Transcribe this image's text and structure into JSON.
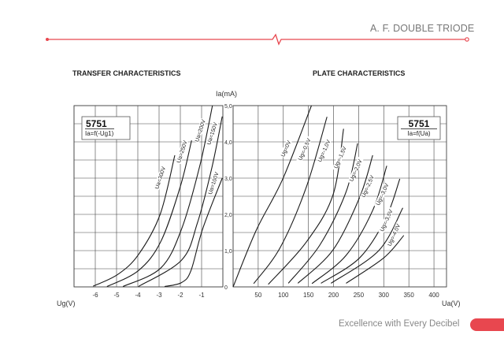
{
  "header": {
    "title": "A. F. DOUBLE TRIODE"
  },
  "footer": {
    "tagline": "Excellence with Every Decibel"
  },
  "colors": {
    "accent": "#e8474f",
    "curve": "#1a1a1a",
    "grid": "#444444",
    "title_text": "#777777"
  },
  "chart_data": [
    {
      "type": "line",
      "title": "TRANSFER CHARACTERISTICS",
      "xlabel": "Ug(V)",
      "ylabel": "Ia(mA)",
      "box": {
        "tube": "5751",
        "formula": "Ia=f(-Ug1)"
      },
      "xlim": [
        -7,
        0
      ],
      "ylim": [
        0,
        5
      ],
      "x_ticks": [
        -6,
        -5,
        -4,
        -3,
        -2,
        -1
      ],
      "x_tick_labels": [
        "-6",
        "-5",
        "-4",
        "-3",
        "-2",
        "-1"
      ],
      "y_ticks": [
        0,
        1,
        2,
        3,
        4,
        5
      ],
      "y_tick_labels": [
        "0",
        "1,0",
        "2,0",
        "3,0",
        "4,0",
        "5,0"
      ],
      "grid": true,
      "series": [
        {
          "name": "Ua=300V",
          "label_at": [
            -2.9,
            3.0
          ],
          "points": [
            [
              -6.1,
              0.02
            ],
            [
              -4.95,
              0.34
            ],
            [
              -3.97,
              0.89
            ],
            [
              -2.95,
              2.0
            ],
            [
              -2.26,
              3.63
            ]
          ]
        },
        {
          "name": "Ua=250V",
          "label_at": [
            -1.88,
            3.72
          ],
          "points": [
            [
              -5.45,
              0.01
            ],
            [
              -3.97,
              0.45
            ],
            [
              -2.92,
              1.25
            ],
            [
              -2.0,
              2.77
            ],
            [
              -1.47,
              4.04
            ]
          ]
        },
        {
          "name": "Ua=200V",
          "label_at": [
            -1.02,
            4.3
          ],
          "points": [
            [
              -4.7,
              0.01
            ],
            [
              -2.92,
              0.52
            ],
            [
              -1.94,
              1.6
            ],
            [
              -1.08,
              3.35
            ],
            [
              -0.49,
              5.0
            ]
          ]
        },
        {
          "name": "Ua=150V",
          "label_at": [
            -0.46,
            4.22
          ],
          "points": [
            [
              -3.97,
              0.01
            ],
            [
              -1.94,
              0.74
            ],
            [
              -1.2,
              1.76
            ],
            [
              -0.52,
              3.28
            ],
            [
              -0.03,
              4.7
            ]
          ]
        },
        {
          "name": "Ua=100V",
          "label_at": [
            -0.4,
            2.85
          ],
          "points": [
            [
              -2.74,
              0.01
            ],
            [
              -1.94,
              0.12
            ],
            [
              -1.5,
              0.45
            ],
            [
              -0.95,
              1.6
            ],
            [
              -0.03,
              3.0
            ]
          ]
        }
      ]
    },
    {
      "type": "line",
      "title": "PLATE CHARACTERISTICS",
      "xlabel": "Ua(V)",
      "ylabel": "Ia(mA)",
      "box": {
        "tube": "5751",
        "formula": "Ia=f(Ua)"
      },
      "xlim": [
        0,
        425
      ],
      "ylim": [
        0,
        5
      ],
      "x_ticks": [
        50,
        100,
        150,
        200,
        250,
        300,
        350,
        400
      ],
      "x_tick_labels": [
        "50",
        "100",
        "150",
        "200",
        "250",
        "300",
        "350",
        "400"
      ],
      "grid": true,
      "series": [
        {
          "name": "Ug=0V",
          "label_at": [
            107,
            3.8
          ],
          "points": [
            [
              0,
              0
            ],
            [
              46,
              1.56
            ],
            [
              99,
              2.98
            ],
            [
              156,
              5.0
            ]
          ]
        },
        {
          "name": "Ug=-0,5V",
          "label_at": [
            144,
            3.78
          ],
          "points": [
            [
              41,
              0.09
            ],
            [
              94,
              1.09
            ],
            [
              146,
              2.76
            ],
            [
              187,
              4.69
            ]
          ]
        },
        {
          "name": "Ug=-1,0V",
          "label_at": [
            183,
            3.74
          ],
          "points": [
            [
              70,
              0.07
            ],
            [
              146,
              1.24
            ],
            [
              199,
              2.54
            ],
            [
              220,
              4.36
            ]
          ]
        },
        {
          "name": "Ug=-1,5V",
          "label_at": [
            215,
            3.56
          ],
          "points": [
            [
              110,
              0.1
            ],
            [
              173,
              1.16
            ],
            [
              225,
              2.62
            ],
            [
              248,
              3.96
            ]
          ]
        },
        {
          "name": "Ug=-2,0V",
          "label_at": [
            246,
            3.2
          ],
          "points": [
            [
              129,
              0.1
            ],
            [
              199,
              1.02
            ],
            [
              252,
              2.47
            ],
            [
              278,
              3.63
            ]
          ]
        },
        {
          "name": "Ug=-2,5V",
          "label_at": [
            270,
            2.76
          ],
          "points": [
            [
              157,
              0.09
            ],
            [
              225,
              0.87
            ],
            [
              278,
              2.11
            ],
            [
              306,
              3.34
            ]
          ]
        },
        {
          "name": "Ug=-3,0V",
          "label_at": [
            299,
            2.54
          ],
          "points": [
            [
              175,
              0.1
            ],
            [
              252,
              0.8
            ],
            [
              304,
              1.89
            ],
            [
              332,
              2.98
            ]
          ]
        },
        {
          "name": "Ug=-3,5V",
          "label_at": [
            307,
            1.82
          ],
          "points": [
            [
              195,
              0.1
            ],
            [
              290,
              1.0
            ],
            [
              338,
              2.18
            ]
          ]
        },
        {
          "name": "Ug=-4,0V",
          "label_at": [
            322,
            1.42
          ],
          "points": [
            [
              225,
              0.1
            ],
            [
              300,
              0.8
            ],
            [
              340,
              1.42
            ]
          ]
        }
      ]
    }
  ]
}
